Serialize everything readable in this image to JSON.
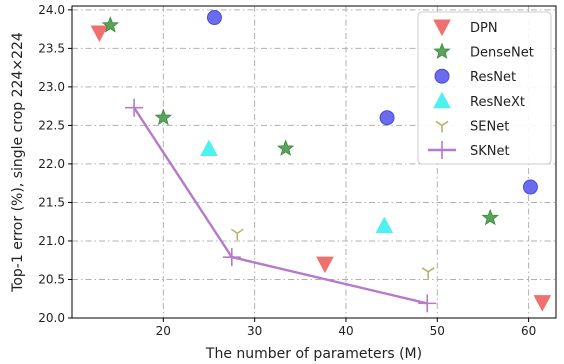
{
  "chart_data": {
    "type": "scatter",
    "title": "",
    "xlabel": "The number of parameters (M)",
    "ylabel": "Top-1 error (%), single crop 224×224",
    "xlim": [
      10,
      63
    ],
    "ylim": [
      20.0,
      24.05
    ],
    "xticks": [
      20,
      30,
      40,
      50,
      60
    ],
    "yticks": [
      20.0,
      20.5,
      21.0,
      21.5,
      22.0,
      22.5,
      23.0,
      23.5,
      24.0
    ],
    "grid": true,
    "legend_position": "top-right",
    "series": [
      {
        "name": "DPN",
        "marker": "triangle-down",
        "color": "#f07070",
        "points": [
          [
            13.0,
            23.7
          ],
          [
            37.7,
            20.7
          ],
          [
            61.5,
            20.2
          ]
        ]
      },
      {
        "name": "DenseNet",
        "marker": "star",
        "color": "#5aa35a",
        "points": [
          [
            14.2,
            23.8
          ],
          [
            20.0,
            22.6
          ],
          [
            33.4,
            22.2
          ],
          [
            55.8,
            21.3
          ]
        ]
      },
      {
        "name": "ResNet",
        "marker": "circle",
        "color": "#6b6bf0",
        "points": [
          [
            25.6,
            23.9
          ],
          [
            44.5,
            22.6
          ],
          [
            60.2,
            21.7
          ]
        ]
      },
      {
        "name": "ResNeXt",
        "marker": "triangle-up",
        "color": "#4ef0f0",
        "points": [
          [
            25.0,
            22.2
          ],
          [
            44.2,
            21.2
          ]
        ]
      },
      {
        "name": "SENet",
        "marker": "tri-down",
        "color": "#b5b56a",
        "points": [
          [
            28.1,
            21.1
          ],
          [
            49.0,
            20.6
          ]
        ]
      },
      {
        "name": "SKNet",
        "marker": "plus-line",
        "color": "#b57ac8",
        "points": [
          [
            16.8,
            22.73
          ],
          [
            27.5,
            20.79
          ],
          [
            48.9,
            20.19
          ]
        ]
      }
    ]
  }
}
